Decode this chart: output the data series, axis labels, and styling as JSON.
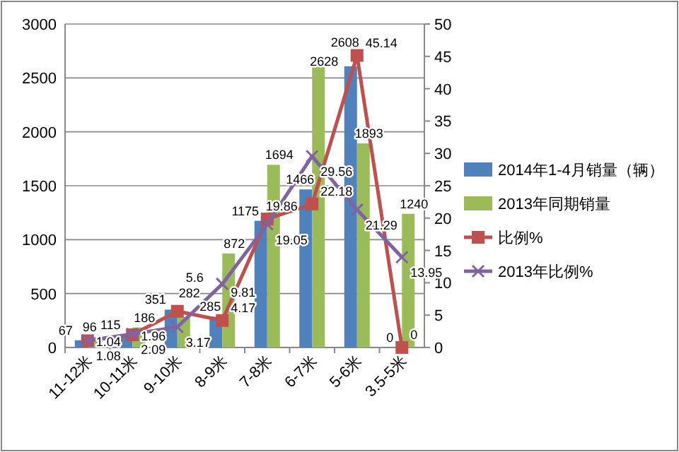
{
  "chart_data": {
    "type": "bar",
    "categories": [
      "11-12米",
      "10-11米",
      "9-10米",
      "8-9米",
      "7-8米",
      "6-7米",
      "5-6米",
      "3.5-5米"
    ],
    "series": [
      {
        "name": "2014年1-4月销量（辆）",
        "color": "#4f81bd",
        "values": [
          67,
          115,
          351,
          285,
          1175,
          1466,
          2608,
          0
        ]
      },
      {
        "name": "2013年同期销量",
        "color": "#9bbb59",
        "values": [
          96,
          186,
          282,
          872,
          1694,
          2628,
          1893,
          1240
        ]
      },
      {
        "name": "比例%",
        "type": "line",
        "axis": "y2",
        "color": "#c0504d",
        "marker": "square",
        "values": [
          1.04,
          1.96,
          5.6,
          4.17,
          19.86,
          22.18,
          45.14,
          0
        ]
      },
      {
        "name": "2013年比例%",
        "type": "line",
        "axis": "y2",
        "color": "#8064a2",
        "marker": "cross",
        "values": [
          1.08,
          2.09,
          3.17,
          9.81,
          19.05,
          29.56,
          21.29,
          13.95
        ]
      }
    ],
    "ylim": [
      0,
      3000
    ],
    "yticks": [
      0,
      500,
      1000,
      1500,
      2000,
      2500,
      3000
    ],
    "y2lim": [
      0,
      50
    ],
    "y2ticks": [
      0,
      5,
      10,
      15,
      20,
      25,
      30,
      35,
      40,
      45,
      50
    ],
    "grid": "y",
    "legend": "right",
    "data_labels": true
  }
}
